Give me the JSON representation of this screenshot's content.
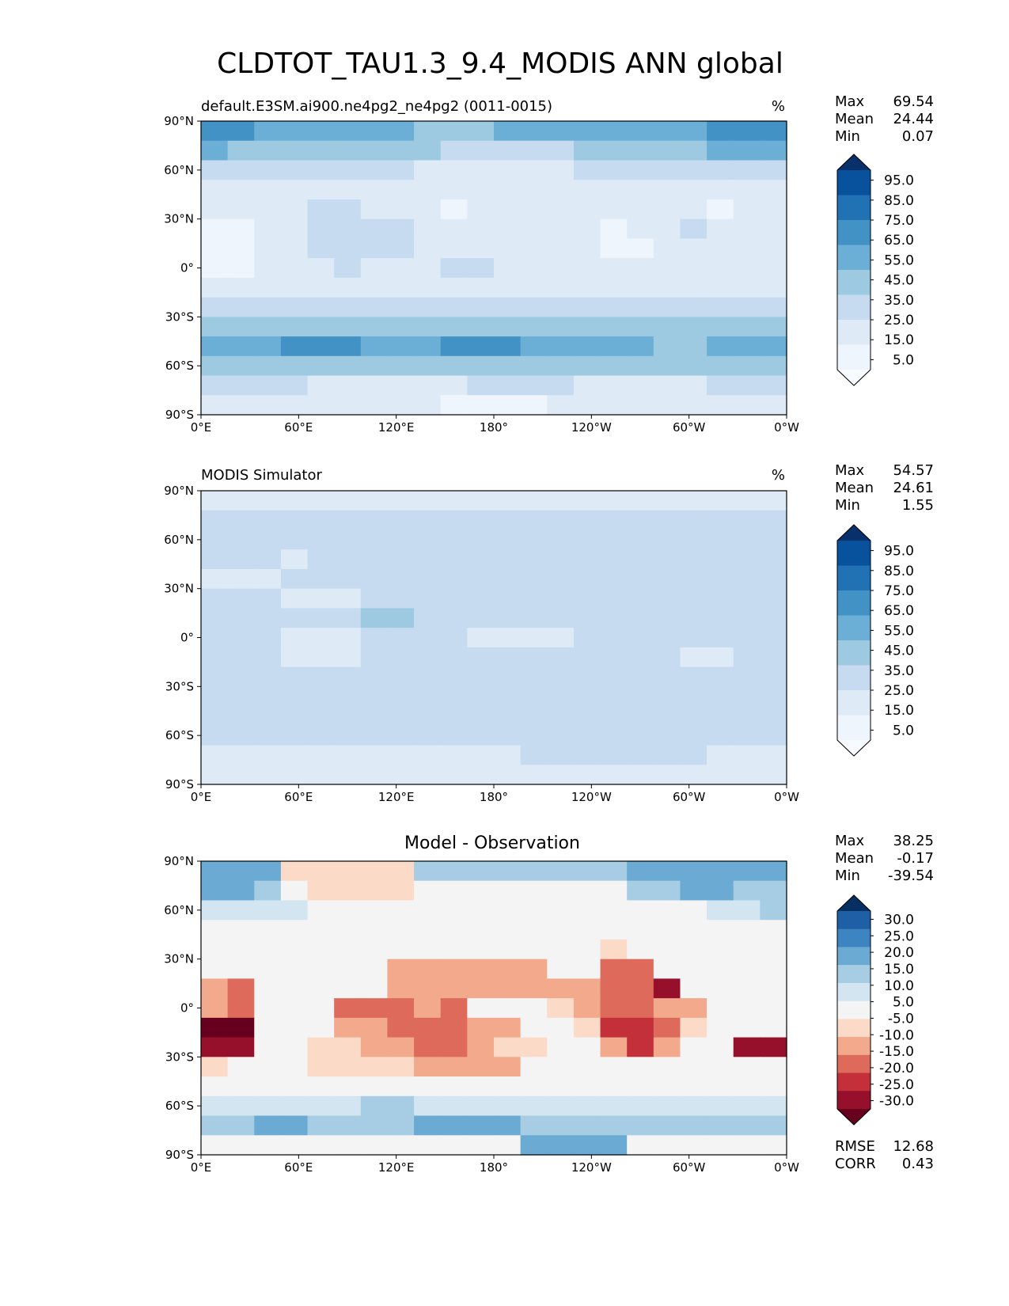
{
  "figure": {
    "title": "CLDTOT_TAU1.3_9.4_MODIS ANN global"
  },
  "chart_data": [
    {
      "type": "heatmap",
      "title": "",
      "subtitle_left": "default.E3SM.ai900.ne4pg2_ne4pg2 (0011-0015)",
      "subtitle_right": "%",
      "x_ticks": [
        "0°E",
        "60°E",
        "120°E",
        "180°",
        "120°W",
        "60°W",
        "0°W"
      ],
      "y_ticks": [
        "90°N",
        "60°N",
        "30°N",
        "0°",
        "30°S",
        "60°S",
        "90°S"
      ],
      "xlim": [
        0,
        360
      ],
      "ylim": [
        -90,
        90
      ],
      "stats": [
        {
          "label": "Max",
          "value": "69.54"
        },
        {
          "label": "Mean",
          "value": "24.44"
        },
        {
          "label": "Min",
          "value": "0.07"
        }
      ],
      "colorbar": {
        "labels": [
          "95.0",
          "85.0",
          "75.0",
          "65.0",
          "55.0",
          "45.0",
          "35.0",
          "25.0",
          "15.0",
          "5.0"
        ],
        "colors": [
          "#08306b",
          "#08519c",
          "#2171b5",
          "#4292c6",
          "#6baed6",
          "#9ecae1",
          "#c6dbef",
          "#deebf7",
          "#eef5fc",
          "#f7fbff"
        ]
      },
      "grid_rows": [
        "6655555544455555555666",
        "5444444443333344444555",
        "3333333322222233333333",
        "2222222222222222222222",
        "2222332221222222222122",
        "1122333322222221223222",
        "1122333322222221122222",
        "1122232223322222222222",
        "2222222222222222222222",
        "3333333333333333333333",
        "4444444444444444444444",
        "5556665556665555544555",
        "4444444444444444444444",
        "3333222222333322222333",
        "2222222221111222222222"
      ]
    },
    {
      "type": "heatmap",
      "title": "",
      "subtitle_left": "MODIS Simulator",
      "subtitle_right": "%",
      "x_ticks": [
        "0°E",
        "60°E",
        "120°E",
        "180°",
        "120°W",
        "60°W",
        "0°W"
      ],
      "y_ticks": [
        "90°N",
        "60°N",
        "30°N",
        "0°",
        "30°S",
        "60°S",
        "90°S"
      ],
      "xlim": [
        0,
        360
      ],
      "ylim": [
        -90,
        90
      ],
      "stats": [
        {
          "label": "Max",
          "value": "54.57"
        },
        {
          "label": "Mean",
          "value": "24.61"
        },
        {
          "label": "Min",
          "value": "1.55"
        }
      ],
      "colorbar": {
        "labels": [
          "95.0",
          "85.0",
          "75.0",
          "65.0",
          "55.0",
          "45.0",
          "35.0",
          "25.0",
          "15.0",
          "5.0"
        ],
        "colors": [
          "#08306b",
          "#08519c",
          "#2171b5",
          "#4292c6",
          "#6baed6",
          "#9ecae1",
          "#c6dbef",
          "#deebf7",
          "#eef5fc",
          "#f7fbff"
        ]
      },
      "grid_rows": [
        "2222222222222222222222",
        "3333333333333333333333",
        "3333333333333333333333",
        "3332333333333333333333",
        "2223333333333333333333",
        "3332223333333333333333",
        "3333334433333333333333",
        "3332223333222233333333",
        "3332223333333333332233",
        "3333333333333333333333",
        "3333333333333333333333",
        "3333333333333333333333",
        "3333333333333333333333",
        "2222222222223333333222",
        "2222222222222222222222"
      ]
    },
    {
      "type": "heatmap",
      "title": "Model - Observation",
      "subtitle_left": "",
      "subtitle_right": "",
      "x_ticks": [
        "0°E",
        "60°E",
        "120°E",
        "180°",
        "120°W",
        "60°W",
        "0°W"
      ],
      "y_ticks": [
        "90°N",
        "60°N",
        "30°N",
        "0°",
        "30°S",
        "60°S",
        "90°S"
      ],
      "xlim": [
        0,
        360
      ],
      "ylim": [
        -90,
        90
      ],
      "stats": [
        {
          "label": "Max",
          "value": "38.25"
        },
        {
          "label": "Mean",
          "value": "-0.17"
        },
        {
          "label": "Min",
          "value": "-39.54"
        }
      ],
      "metrics": [
        {
          "label": "RMSE",
          "value": "12.68"
        },
        {
          "label": "CORR",
          "value": "0.43"
        }
      ],
      "colorbar": {
        "labels": [
          "30.0",
          "25.0",
          "20.0",
          "15.0",
          "10.0",
          "5.0",
          "-5.0",
          "-10.0",
          "-15.0",
          "-20.0",
          "-25.0",
          "-30.0"
        ],
        "colors": [
          "#053061",
          "#1f5fa5",
          "#3d85c0",
          "#6aaad3",
          "#a6cde3",
          "#d2e5f0",
          "#f4f4f4",
          "#fbdac8",
          "#f2a98c",
          "#dd6a5b",
          "#c3303a",
          "#960f2b",
          "#67001f"
        ]
      },
      "grid_rows": [
        "9995555588888888999999",
        "9986555566666666889988",
        "7777666666666666666778",
        "6666666666666666666666",
        "6666666666666665666666",
        "6666666444444663366666",
        "4366666444444443316666",
        "4366633343666543344666",
        "0066644333446652235666",
        "1166554433455664246611",
        "5666555544446666666666",
        "6666666666666666666666",
        "7777778877777777777777",
        "8899888899998888888888",
        "6666666666669999666666"
      ]
    }
  ]
}
